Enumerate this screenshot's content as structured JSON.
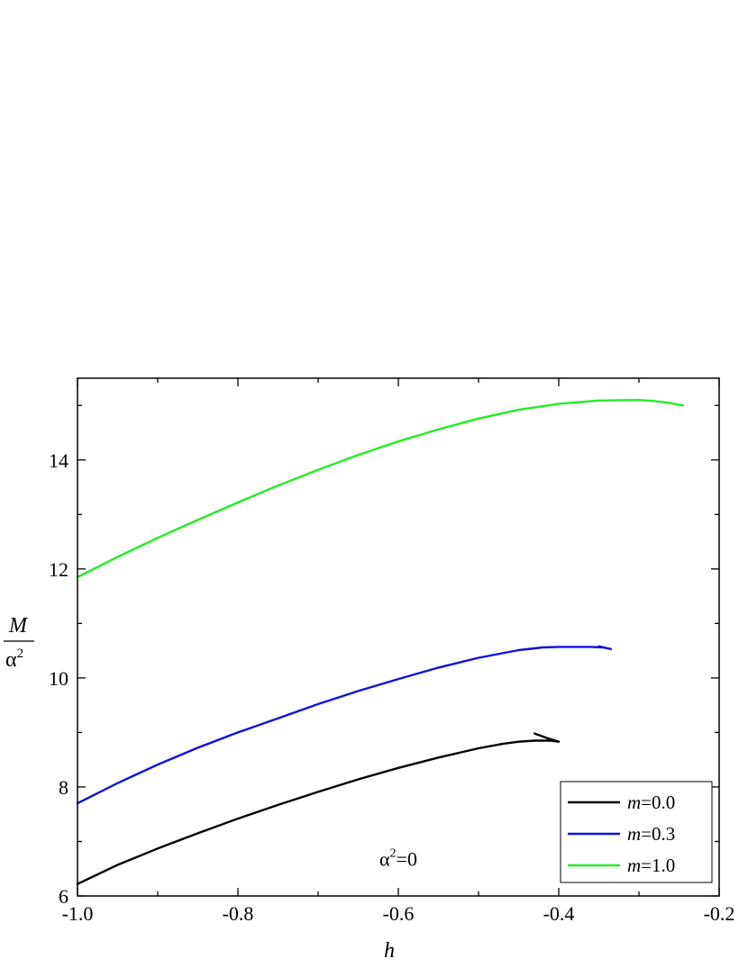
{
  "chart_data": {
    "type": "line",
    "xlabel": "h",
    "ylabel": {
      "numerator": "M",
      "denominator_base": "α",
      "denominator_exp": "2"
    },
    "xlim": [
      -1.0,
      -0.2
    ],
    "ylim": [
      6,
      15.5
    ],
    "x_ticks": [
      -1.0,
      -0.8,
      -0.6,
      -0.4,
      -0.2
    ],
    "x_tick_labels": [
      "-1.0",
      "-0.8",
      "-0.6",
      "-0.4",
      "-0.2"
    ],
    "x_minor_step": 0.1,
    "y_ticks": [
      6,
      8,
      10,
      12,
      14
    ],
    "y_tick_labels": [
      "6",
      "8",
      "10",
      "12",
      "14"
    ],
    "y_minor_step": 1,
    "grid": false,
    "legend_position": "bottom-right",
    "annotation": {
      "base": "α",
      "exp": "2",
      "rest": "=0",
      "x": -0.6,
      "y": 6.55
    },
    "series": [
      {
        "name": "m=0.0",
        "name_var": "m",
        "name_val": "=0.0",
        "color": "#000000",
        "x": [
          -1.0,
          -0.95,
          -0.9,
          -0.85,
          -0.8,
          -0.75,
          -0.7,
          -0.65,
          -0.6,
          -0.55,
          -0.5,
          -0.47,
          -0.45,
          -0.43,
          -0.41,
          -0.4,
          -0.415,
          -0.43
        ],
        "y": [
          6.22,
          6.57,
          6.87,
          7.15,
          7.42,
          7.67,
          7.91,
          8.14,
          8.35,
          8.54,
          8.71,
          8.79,
          8.83,
          8.85,
          8.85,
          8.83,
          8.9,
          8.98
        ]
      },
      {
        "name": "m=0.3",
        "name_var": "m",
        "name_val": "=0.3",
        "color": "#1010e0",
        "x": [
          -1.0,
          -0.95,
          -0.9,
          -0.85,
          -0.8,
          -0.75,
          -0.7,
          -0.65,
          -0.6,
          -0.55,
          -0.5,
          -0.45,
          -0.42,
          -0.4,
          -0.38,
          -0.36,
          -0.345,
          -0.335,
          -0.35
        ],
        "y": [
          7.7,
          8.07,
          8.41,
          8.72,
          9.0,
          9.26,
          9.52,
          9.76,
          9.98,
          10.19,
          10.37,
          10.51,
          10.56,
          10.57,
          10.57,
          10.57,
          10.56,
          10.53,
          10.58
        ]
      },
      {
        "name": "m=1.0",
        "name_var": "m",
        "name_val": "=1.0",
        "color": "#22ee22",
        "x": [
          -1.0,
          -0.95,
          -0.9,
          -0.85,
          -0.8,
          -0.75,
          -0.7,
          -0.65,
          -0.6,
          -0.55,
          -0.5,
          -0.45,
          -0.4,
          -0.35,
          -0.3,
          -0.28,
          -0.26,
          -0.245
        ],
        "y": [
          11.85,
          12.22,
          12.57,
          12.9,
          13.22,
          13.53,
          13.82,
          14.09,
          14.34,
          14.56,
          14.76,
          14.92,
          15.03,
          15.09,
          15.1,
          15.08,
          15.04,
          15.0
        ]
      }
    ]
  }
}
